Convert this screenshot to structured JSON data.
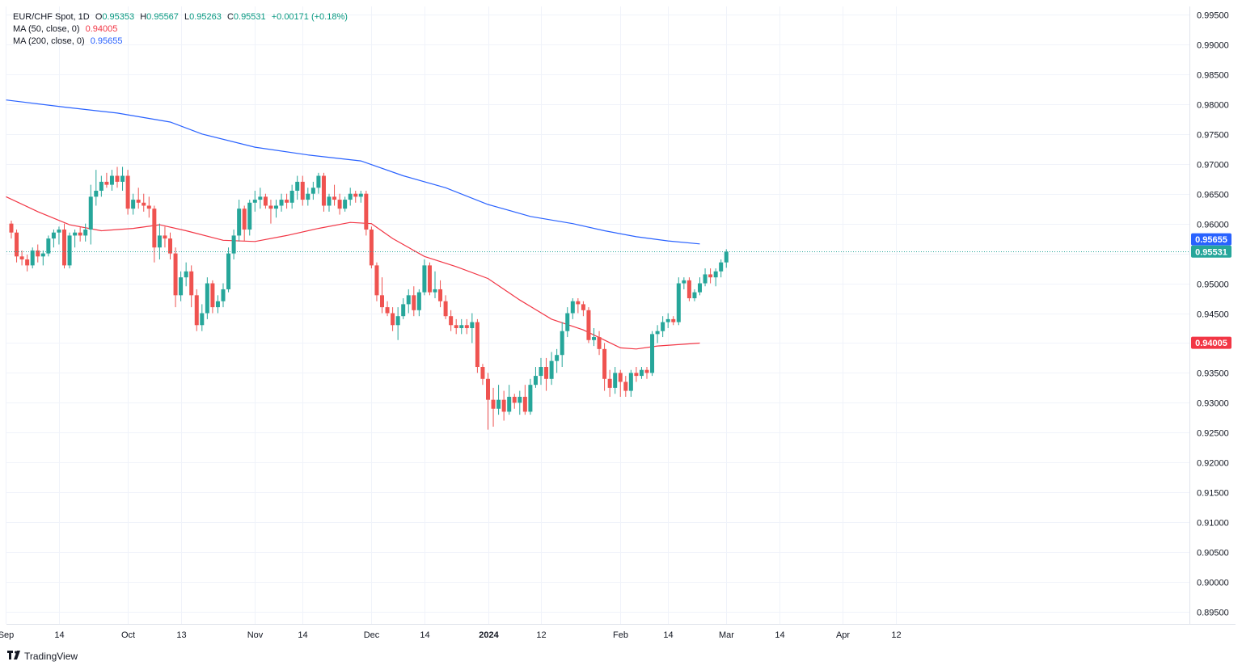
{
  "legend": {
    "symbol": "EUR/CHF Spot, 1D",
    "o_label": "O",
    "o": "0.95353",
    "h_label": "H",
    "h": "0.95567",
    "l_label": "L",
    "l": "0.95263",
    "c_label": "C",
    "c": "0.95531",
    "change": "+0.00171 (+0.18%)",
    "ma50_label": "MA (50, close, 0)",
    "ma50_value": "0.94005",
    "ma200_label": "MA (200, close, 0)",
    "ma200_value": "0.95655"
  },
  "watermark": {
    "text": "TradingView"
  },
  "colors": {
    "up": "#26a69a",
    "down": "#ef5350",
    "ma50": "#f23645",
    "ma200": "#2962ff",
    "grid": "#f0f3fa"
  },
  "chart_data": {
    "type": "candlestick",
    "title": "EUR/CHF Spot, 1D",
    "ylim": [
      0.8925,
      1.0
    ],
    "y_ticks": [
      "0.99500",
      "0.99000",
      "0.98500",
      "0.98000",
      "0.97500",
      "0.97000",
      "0.96500",
      "0.96000",
      "0.95500",
      "0.95000",
      "0.94500",
      "0.94000",
      "0.93500",
      "0.93000",
      "0.92500",
      "0.92000",
      "0.91500",
      "0.91000",
      "0.90500",
      "0.90000",
      "0.89500"
    ],
    "x_labels": [
      {
        "label": "Sep",
        "index": -1
      },
      {
        "label": "14",
        "index": 9
      },
      {
        "label": "Oct",
        "index": 22
      },
      {
        "label": "13",
        "index": 32
      },
      {
        "label": "Nov",
        "index": 46
      },
      {
        "label": "14",
        "index": 55
      },
      {
        "label": "Dec",
        "index": 68
      },
      {
        "label": "14",
        "index": 78
      },
      {
        "label": "2024",
        "index": 90,
        "bold": true
      },
      {
        "label": "12",
        "index": 100
      },
      {
        "label": "Feb",
        "index": 115
      },
      {
        "label": "14",
        "index": 124
      },
      {
        "label": "Mar",
        "index": 135
      },
      {
        "label": "14",
        "index": 145
      },
      {
        "label": "Apr",
        "index": 157
      },
      {
        "label": "12",
        "index": 167
      }
    ],
    "last_price": "0.95531",
    "ma50_last": "0.94005",
    "ma200_last": "0.95655",
    "candles": [
      [
        0.96,
        0.9605,
        0.9575,
        0.9585
      ],
      [
        0.9585,
        0.959,
        0.9535,
        0.9545
      ],
      [
        0.9545,
        0.9555,
        0.953,
        0.954
      ],
      [
        0.954,
        0.9548,
        0.952,
        0.953
      ],
      [
        0.953,
        0.956,
        0.9525,
        0.9555
      ],
      [
        0.9555,
        0.9565,
        0.9535,
        0.9545
      ],
      [
        0.9545,
        0.9555,
        0.953,
        0.955
      ],
      [
        0.955,
        0.958,
        0.9545,
        0.9575
      ],
      [
        0.9575,
        0.959,
        0.956,
        0.9585
      ],
      [
        0.9585,
        0.9595,
        0.9565,
        0.959
      ],
      [
        0.959,
        0.96,
        0.9525,
        0.953
      ],
      [
        0.953,
        0.9585,
        0.9525,
        0.958
      ],
      [
        0.958,
        0.959,
        0.956,
        0.9585
      ],
      [
        0.9585,
        0.9595,
        0.957,
        0.958
      ],
      [
        0.958,
        0.96,
        0.957,
        0.959
      ],
      [
        0.959,
        0.9665,
        0.9565,
        0.9645
      ],
      [
        0.9645,
        0.969,
        0.963,
        0.9655
      ],
      [
        0.9655,
        0.968,
        0.9645,
        0.967
      ],
      [
        0.967,
        0.9685,
        0.966,
        0.9665
      ],
      [
        0.9665,
        0.969,
        0.9655,
        0.968
      ],
      [
        0.968,
        0.9695,
        0.966,
        0.967
      ],
      [
        0.967,
        0.9695,
        0.9655,
        0.968
      ],
      [
        0.968,
        0.969,
        0.9615,
        0.9625
      ],
      [
        0.9625,
        0.965,
        0.9615,
        0.964
      ],
      [
        0.964,
        0.966,
        0.9625,
        0.9635
      ],
      [
        0.9635,
        0.965,
        0.962,
        0.963
      ],
      [
        0.963,
        0.9645,
        0.961,
        0.9625
      ],
      [
        0.9625,
        0.963,
        0.9535,
        0.956
      ],
      [
        0.956,
        0.96,
        0.954,
        0.958
      ],
      [
        0.958,
        0.9595,
        0.956,
        0.9575
      ],
      [
        0.9575,
        0.9585,
        0.954,
        0.955
      ],
      [
        0.955,
        0.956,
        0.946,
        0.948
      ],
      [
        0.948,
        0.952,
        0.947,
        0.951
      ],
      [
        0.951,
        0.9535,
        0.9495,
        0.952
      ],
      [
        0.952,
        0.953,
        0.946,
        0.948
      ],
      [
        0.948,
        0.949,
        0.942,
        0.943
      ],
      [
        0.943,
        0.9465,
        0.942,
        0.945
      ],
      [
        0.945,
        0.951,
        0.944,
        0.95
      ],
      [
        0.95,
        0.9505,
        0.945,
        0.946
      ],
      [
        0.946,
        0.948,
        0.945,
        0.947
      ],
      [
        0.947,
        0.95,
        0.946,
        0.949
      ],
      [
        0.949,
        0.956,
        0.9485,
        0.955
      ],
      [
        0.955,
        0.959,
        0.954,
        0.958
      ],
      [
        0.958,
        0.964,
        0.957,
        0.9625
      ],
      [
        0.9625,
        0.963,
        0.957,
        0.959
      ],
      [
        0.959,
        0.964,
        0.958,
        0.9635
      ],
      [
        0.9635,
        0.9655,
        0.962,
        0.964
      ],
      [
        0.964,
        0.966,
        0.9625,
        0.9645
      ],
      [
        0.9645,
        0.965,
        0.9625,
        0.963
      ],
      [
        0.963,
        0.964,
        0.96,
        0.9625
      ],
      [
        0.9625,
        0.964,
        0.961,
        0.963
      ],
      [
        0.963,
        0.965,
        0.962,
        0.964
      ],
      [
        0.964,
        0.965,
        0.9625,
        0.9635
      ],
      [
        0.9635,
        0.9665,
        0.9625,
        0.9655
      ],
      [
        0.9655,
        0.968,
        0.964,
        0.967
      ],
      [
        0.967,
        0.968,
        0.963,
        0.964
      ],
      [
        0.964,
        0.966,
        0.963,
        0.965
      ],
      [
        0.965,
        0.967,
        0.964,
        0.966
      ],
      [
        0.966,
        0.9685,
        0.965,
        0.968
      ],
      [
        0.968,
        0.9685,
        0.962,
        0.963
      ],
      [
        0.963,
        0.965,
        0.962,
        0.9645
      ],
      [
        0.9645,
        0.9665,
        0.963,
        0.964
      ],
      [
        0.964,
        0.965,
        0.9615,
        0.9625
      ],
      [
        0.9625,
        0.9645,
        0.962,
        0.964
      ],
      [
        0.964,
        0.966,
        0.963,
        0.965
      ],
      [
        0.965,
        0.9655,
        0.9635,
        0.9645
      ],
      [
        0.9645,
        0.9655,
        0.9635,
        0.965
      ],
      [
        0.965,
        0.9655,
        0.958,
        0.959
      ],
      [
        0.959,
        0.9595,
        0.9525,
        0.953
      ],
      [
        0.953,
        0.9535,
        0.947,
        0.948
      ],
      [
        0.948,
        0.951,
        0.945,
        0.946
      ],
      [
        0.946,
        0.947,
        0.9445,
        0.945
      ],
      [
        0.945,
        0.946,
        0.942,
        0.943
      ],
      [
        0.943,
        0.946,
        0.9405,
        0.9445
      ],
      [
        0.9445,
        0.9475,
        0.944,
        0.9465
      ],
      [
        0.9465,
        0.949,
        0.945,
        0.948
      ],
      [
        0.948,
        0.9495,
        0.9445,
        0.9455
      ],
      [
        0.9455,
        0.949,
        0.9445,
        0.9485
      ],
      [
        0.9485,
        0.954,
        0.948,
        0.953
      ],
      [
        0.953,
        0.9535,
        0.948,
        0.9485
      ],
      [
        0.9485,
        0.952,
        0.9475,
        0.949
      ],
      [
        0.949,
        0.9505,
        0.946,
        0.947
      ],
      [
        0.947,
        0.948,
        0.944,
        0.9445
      ],
      [
        0.9445,
        0.9455,
        0.942,
        0.943
      ],
      [
        0.943,
        0.944,
        0.9415,
        0.9425
      ],
      [
        0.9425,
        0.944,
        0.9415,
        0.943
      ],
      [
        0.943,
        0.944,
        0.9415,
        0.9425
      ],
      [
        0.9425,
        0.945,
        0.94,
        0.9435
      ],
      [
        0.9435,
        0.944,
        0.935,
        0.936
      ],
      [
        0.936,
        0.9365,
        0.933,
        0.934
      ],
      [
        0.934,
        0.935,
        0.9255,
        0.9305
      ],
      [
        0.9305,
        0.9325,
        0.926,
        0.929
      ],
      [
        0.929,
        0.933,
        0.928,
        0.9305
      ],
      [
        0.9305,
        0.932,
        0.927,
        0.9285
      ],
      [
        0.9285,
        0.933,
        0.928,
        0.931
      ],
      [
        0.931,
        0.9315,
        0.929,
        0.93
      ],
      [
        0.93,
        0.932,
        0.928,
        0.931
      ],
      [
        0.931,
        0.933,
        0.928,
        0.9285
      ],
      [
        0.9285,
        0.934,
        0.928,
        0.933
      ],
      [
        0.933,
        0.936,
        0.9325,
        0.9345
      ],
      [
        0.9345,
        0.9375,
        0.933,
        0.936
      ],
      [
        0.936,
        0.9375,
        0.932,
        0.934
      ],
      [
        0.934,
        0.9385,
        0.933,
        0.937
      ],
      [
        0.937,
        0.939,
        0.935,
        0.938
      ],
      [
        0.938,
        0.9435,
        0.936,
        0.942
      ],
      [
        0.942,
        0.946,
        0.941,
        0.945
      ],
      [
        0.945,
        0.9475,
        0.944,
        0.947
      ],
      [
        0.947,
        0.9475,
        0.945,
        0.9465
      ],
      [
        0.9465,
        0.947,
        0.9445,
        0.9455
      ],
      [
        0.9455,
        0.946,
        0.94,
        0.9405
      ],
      [
        0.9405,
        0.9425,
        0.9395,
        0.941
      ],
      [
        0.941,
        0.942,
        0.938,
        0.939
      ],
      [
        0.939,
        0.94,
        0.932,
        0.934
      ],
      [
        0.934,
        0.9355,
        0.931,
        0.9325
      ],
      [
        0.9325,
        0.936,
        0.9315,
        0.935
      ],
      [
        0.935,
        0.9355,
        0.931,
        0.9335
      ],
      [
        0.9335,
        0.9345,
        0.931,
        0.932
      ],
      [
        0.932,
        0.9355,
        0.931,
        0.935
      ],
      [
        0.935,
        0.936,
        0.9335,
        0.9345
      ],
      [
        0.9345,
        0.936,
        0.934,
        0.9355
      ],
      [
        0.9355,
        0.936,
        0.934,
        0.935
      ],
      [
        0.935,
        0.942,
        0.9345,
        0.9415
      ],
      [
        0.9415,
        0.943,
        0.94,
        0.942
      ],
      [
        0.942,
        0.9445,
        0.941,
        0.9435
      ],
      [
        0.9435,
        0.945,
        0.9425,
        0.944
      ],
      [
        0.944,
        0.9445,
        0.943,
        0.9435
      ],
      [
        0.9435,
        0.951,
        0.943,
        0.95
      ],
      [
        0.95,
        0.951,
        0.949,
        0.9505
      ],
      [
        0.9505,
        0.951,
        0.947,
        0.9475
      ],
      [
        0.9475,
        0.949,
        0.947,
        0.9485
      ],
      [
        0.9485,
        0.951,
        0.948,
        0.95
      ],
      [
        0.95,
        0.9525,
        0.9495,
        0.9515
      ],
      [
        0.9515,
        0.9525,
        0.95,
        0.951
      ],
      [
        0.951,
        0.9525,
        0.9495,
        0.952
      ],
      [
        0.952,
        0.954,
        0.951,
        0.9535
      ],
      [
        0.9535,
        0.9557,
        0.9526,
        0.9553
      ]
    ],
    "ma50": [
      [
        -1,
        0.9645
      ],
      [
        5,
        0.962
      ],
      [
        11,
        0.9598
      ],
      [
        17,
        0.9588
      ],
      [
        23,
        0.9592
      ],
      [
        28,
        0.9598
      ],
      [
        33,
        0.9588
      ],
      [
        40,
        0.9572
      ],
      [
        46,
        0.957
      ],
      [
        52,
        0.958
      ],
      [
        58,
        0.9592
      ],
      [
        64,
        0.9602
      ],
      [
        68,
        0.96
      ],
      [
        72,
        0.9575
      ],
      [
        78,
        0.9545
      ],
      [
        84,
        0.9528
      ],
      [
        90,
        0.9508
      ],
      [
        96,
        0.9472
      ],
      [
        102,
        0.944
      ],
      [
        108,
        0.9422
      ],
      [
        112,
        0.9405
      ],
      [
        115,
        0.9392
      ],
      [
        118,
        0.939
      ],
      [
        122,
        0.9395
      ],
      [
        127,
        0.9398
      ],
      [
        130,
        0.94
      ]
    ],
    "ma200": [
      [
        -1,
        0.9807
      ],
      [
        10,
        0.9795
      ],
      [
        20,
        0.9785
      ],
      [
        30,
        0.977
      ],
      [
        36,
        0.975
      ],
      [
        46,
        0.9728
      ],
      [
        56,
        0.9715
      ],
      [
        66,
        0.9705
      ],
      [
        74,
        0.968
      ],
      [
        82,
        0.966
      ],
      [
        90,
        0.9632
      ],
      [
        98,
        0.9612
      ],
      [
        106,
        0.96
      ],
      [
        112,
        0.9588
      ],
      [
        118,
        0.9578
      ],
      [
        124,
        0.9571
      ],
      [
        130,
        0.9566
      ]
    ]
  }
}
